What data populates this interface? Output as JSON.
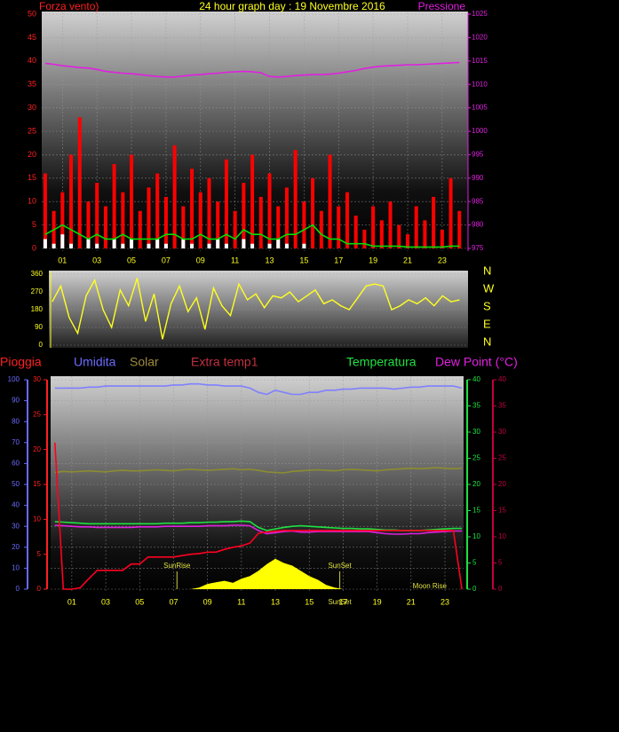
{
  "chart_data": [
    {
      "type": "combo",
      "title": "24 hour graph day : 19 Novembre 2016",
      "ylabel": "Forza vento)",
      "y2label": "Pressione",
      "x": [
        0,
        0.5,
        1,
        1.5,
        2,
        2.5,
        3,
        3.5,
        4,
        4.5,
        5,
        5.5,
        6,
        6.5,
        7,
        7.5,
        8,
        8.5,
        9,
        9.5,
        10,
        10.5,
        11,
        11.5,
        12,
        12.5,
        13,
        13.5,
        14,
        14.5,
        15,
        15.5,
        16,
        16.5,
        17,
        17.5,
        18,
        18.5,
        19,
        19.5,
        20,
        20.5,
        21,
        21.5,
        22,
        22.5,
        23,
        23.5,
        24
      ],
      "xlim": [
        -0.2,
        24.5
      ],
      "xticks": [
        {
          "value": 1,
          "label": "01"
        },
        {
          "value": 3,
          "label": "03"
        },
        {
          "value": 5,
          "label": "05"
        },
        {
          "value": 7,
          "label": "07"
        },
        {
          "value": 9,
          "label": "09"
        },
        {
          "value": 11,
          "label": "11"
        },
        {
          "value": 13,
          "label": "13"
        },
        {
          "value": 15,
          "label": "15"
        },
        {
          "value": 17,
          "label": "17"
        },
        {
          "value": 19,
          "label": "19"
        },
        {
          "value": 21,
          "label": "21"
        },
        {
          "value": 23,
          "label": "23"
        }
      ],
      "ylim": [
        0,
        50
      ],
      "yticks": [
        0,
        5,
        10,
        15,
        20,
        25,
        30,
        35,
        40,
        45,
        50
      ],
      "y2lim": [
        975,
        1025
      ],
      "y2ticks": [
        975,
        980,
        985,
        990,
        995,
        1000,
        1005,
        1010,
        1015,
        1020,
        1025
      ],
      "grid": true,
      "series": [
        {
          "type": "bar",
          "color": "#ff0000",
          "values": [
            16,
            8,
            12,
            20,
            28,
            10,
            14,
            9,
            18,
            12,
            20,
            8,
            13,
            16,
            11,
            22,
            9,
            17,
            12,
            15,
            10,
            19,
            8,
            14,
            20,
            11,
            16,
            9,
            13,
            21,
            10,
            15,
            8,
            20,
            9,
            12,
            7,
            4,
            9,
            6,
            10,
            5,
            3,
            9,
            6,
            11,
            4,
            15,
            8
          ]
        },
        {
          "type": "bar",
          "color": "#ffffff",
          "values": [
            2,
            1,
            3,
            1,
            0,
            2,
            1,
            0,
            2,
            1,
            2,
            0,
            1,
            2,
            1,
            0,
            2,
            1,
            0,
            1,
            2,
            1,
            0,
            2,
            1,
            0,
            1,
            2,
            1,
            0,
            1,
            0,
            0,
            0,
            0,
            0,
            0,
            0,
            0,
            0,
            0,
            0,
            0,
            0,
            0,
            0,
            0,
            0,
            0
          ]
        },
        {
          "type": "line",
          "color": "#00e000",
          "values": [
            3,
            4,
            5,
            4,
            3,
            2,
            3,
            2,
            2,
            3,
            2,
            2,
            2,
            2,
            3,
            3,
            2,
            2,
            3,
            2,
            2,
            3,
            2,
            4,
            3,
            3,
            2,
            2,
            3,
            3,
            4,
            5,
            3,
            2,
            2,
            1,
            1,
            1,
            0.5,
            0.5,
            0.5,
            0.5,
            0.3,
            0.3,
            0.3,
            0.3,
            0.3,
            0.5,
            0.5
          ]
        },
        {
          "type": "line",
          "axis": "y2",
          "color": "#e020e0",
          "values": [
            1014.5,
            1014.3,
            1014,
            1013.8,
            1013.6,
            1013.5,
            1013.2,
            1012.8,
            1012.6,
            1012.4,
            1012.3,
            1012.1,
            1011.9,
            1011.7,
            1011.6,
            1011.6,
            1011.8,
            1012,
            1012.1,
            1012.3,
            1012.4,
            1012.6,
            1012.7,
            1012.8,
            1012.7,
            1012.5,
            1011.7,
            1011.6,
            1011.7,
            1011.9,
            1012,
            1012.1,
            1012.1,
            1012.2,
            1012.4,
            1012.7,
            1013,
            1013.4,
            1013.7,
            1013.9,
            1014,
            1014.1,
            1014.2,
            1014.2,
            1014.3,
            1014.4,
            1014.5,
            1014.6,
            1014.7
          ]
        }
      ]
    },
    {
      "type": "line",
      "x": [
        0,
        0.5,
        1,
        1.5,
        2,
        2.5,
        3,
        3.5,
        4,
        4.5,
        5,
        5.5,
        6,
        6.5,
        7,
        7.5,
        8,
        8.5,
        9,
        9.5,
        10,
        10.5,
        11,
        11.5,
        12,
        12.5,
        13,
        13.5,
        14,
        14.5,
        15,
        15.5,
        16,
        16.5,
        17,
        17.5,
        18,
        18.5,
        19,
        19.5,
        20,
        20.5,
        21,
        21.5,
        22,
        22.5,
        23,
        23.5,
        24
      ],
      "xlim": [
        -0.2,
        24.5
      ],
      "ylim": [
        0,
        360
      ],
      "yticks": [
        0,
        90,
        180,
        270,
        360
      ],
      "compass": [
        "N",
        "W",
        "S",
        "E",
        "N"
      ],
      "grid": true,
      "color": "#ffff20",
      "values": [
        220,
        300,
        140,
        60,
        250,
        330,
        180,
        90,
        280,
        200,
        340,
        120,
        260,
        30,
        210,
        300,
        170,
        240,
        80,
        290,
        200,
        150,
        310,
        230,
        260,
        190,
        250,
        240,
        270,
        220,
        250,
        280,
        210,
        230,
        200,
        180,
        240,
        300,
        310,
        300,
        180,
        200,
        230,
        210,
        240,
        200,
        250,
        220,
        230
      ]
    },
    {
      "type": "combo",
      "legend": [
        {
          "text": "Pioggia",
          "color": "#ff2020"
        },
        {
          "text": "Umidita",
          "color": "#6a6aff"
        },
        {
          "text": "Solar",
          "color": "#a08c3c"
        },
        {
          "text": "Extra temp1",
          "color": "#c03040"
        },
        {
          "text": "Temperatura",
          "color": "#20e040"
        },
        {
          "text": "Dew Point (°C)",
          "color": "#e020e0"
        }
      ],
      "x": [
        0,
        0.5,
        1,
        1.5,
        2,
        2.5,
        3,
        3.5,
        4,
        4.5,
        5,
        5.5,
        6,
        6.5,
        7,
        7.5,
        8,
        8.5,
        9,
        9.5,
        10,
        10.5,
        11,
        11.5,
        12,
        12.5,
        13,
        13.5,
        14,
        14.5,
        15,
        15.5,
        16,
        16.5,
        17,
        17.5,
        18,
        18.5,
        19,
        19.5,
        20,
        20.5,
        21,
        21.5,
        22,
        22.5,
        23,
        23.5,
        24
      ],
      "xlim": [
        -0.25,
        24.1
      ],
      "xticks": [
        {
          "value": 1,
          "label": "01"
        },
        {
          "value": 3,
          "label": "03"
        },
        {
          "value": 5,
          "label": "05"
        },
        {
          "value": 7,
          "label": "07"
        },
        {
          "value": 9,
          "label": "09"
        },
        {
          "value": 11,
          "label": "11"
        },
        {
          "value": 13,
          "label": "13"
        },
        {
          "value": 15,
          "label": "15"
        },
        {
          "value": 17,
          "label": "17"
        },
        {
          "value": 19,
          "label": "19"
        },
        {
          "value": 21,
          "label": "21"
        },
        {
          "value": 23,
          "label": "23"
        }
      ],
      "axes": [
        {
          "side": "left",
          "color": "#6a6aff",
          "lim": [
            0,
            100
          ],
          "ticks": [
            0,
            10,
            20,
            30,
            40,
            50,
            60,
            70,
            80,
            90,
            100
          ]
        },
        {
          "side": "left",
          "color": "#ff2020",
          "lim": [
            0,
            30
          ],
          "ticks": [
            0,
            5,
            10,
            15,
            20,
            25,
            30
          ]
        },
        {
          "side": "right",
          "color": "#20e040",
          "lim": [
            0,
            40
          ],
          "ticks": [
            0,
            5,
            10,
            15,
            20,
            25,
            30,
            35,
            40
          ]
        },
        {
          "side": "right",
          "color": "#c00040",
          "lim": [
            0,
            40
          ],
          "ticks": [
            0,
            5,
            10,
            15,
            20,
            25,
            30,
            35,
            40
          ]
        }
      ],
      "grid": true,
      "series": [
        {
          "type": "area",
          "axis": 2,
          "color": "#ffff00",
          "values": [
            0,
            0,
            0,
            0,
            0,
            0,
            0,
            0,
            0,
            0,
            0,
            0,
            0,
            0,
            0,
            0,
            0,
            0.3,
            1,
            1.3,
            1.6,
            1.2,
            2,
            2.5,
            3.5,
            4.8,
            5.8,
            5,
            4.5,
            3.5,
            2.5,
            1.8,
            0.8,
            0.3,
            0,
            0,
            0,
            0,
            0,
            0,
            0,
            0,
            0,
            0,
            0,
            0,
            0,
            0,
            0
          ]
        },
        {
          "type": "line",
          "axis": 2,
          "color": "#8c8c30",
          "values": [
            22.3,
            22.5,
            22.4,
            22.5,
            22.6,
            22.5,
            22.4,
            22.6,
            22.7,
            22.6,
            22.6,
            22.7,
            22.8,
            22.7,
            22.6,
            22.8,
            22.9,
            22.8,
            22.7,
            22.8,
            22.9,
            23,
            22.8,
            22.9,
            22.7,
            22.4,
            22.3,
            22.2,
            22.5,
            22.6,
            22.7,
            22.8,
            22.7,
            22.6,
            22.8,
            22.9,
            22.8,
            22.7,
            22.6,
            22.8,
            22.9,
            23,
            23.1,
            23,
            23.1,
            23.2,
            23.1,
            23,
            23.1
          ]
        },
        {
          "type": "line",
          "axis": 0,
          "color": "#8080ff",
          "values": [
            96,
            96,
            96,
            96,
            96.5,
            96.5,
            97,
            97,
            97,
            97,
            97,
            97,
            97,
            97,
            97.5,
            97.5,
            98,
            98,
            97.5,
            97.5,
            97,
            97,
            97,
            96,
            94,
            93,
            95,
            94,
            93,
            93,
            94,
            94,
            95,
            95,
            95.5,
            95.5,
            96,
            96,
            96,
            96,
            95.5,
            96,
            96.5,
            96.5,
            97,
            97,
            97,
            97,
            96
          ]
        },
        {
          "type": "line",
          "axis": 3,
          "color": "#e020e0",
          "values": [
            12.2,
            12.1,
            12,
            11.9,
            11.9,
            11.8,
            11.8,
            11.8,
            11.8,
            11.8,
            11.9,
            11.9,
            11.9,
            12,
            12,
            12,
            12,
            12,
            12.1,
            12.1,
            12.1,
            12.2,
            12.2,
            12.1,
            11.2,
            10.6,
            10.8,
            11,
            11.1,
            10.9,
            10.9,
            11,
            11,
            11,
            11,
            11,
            11,
            11,
            10.8,
            10.6,
            10.5,
            10.5,
            10.6,
            10.6,
            10.8,
            10.9,
            11,
            11.1,
            11.1
          ]
        },
        {
          "type": "line",
          "axis": 2,
          "color": "#20e040",
          "values": [
            12.9,
            12.8,
            12.7,
            12.6,
            12.5,
            12.5,
            12.5,
            12.5,
            12.5,
            12.5,
            12.5,
            12.5,
            12.5,
            12.6,
            12.6,
            12.6,
            12.7,
            12.7,
            12.8,
            12.8,
            12.9,
            12.9,
            13,
            12.9,
            11.8,
            11.2,
            11.5,
            11.8,
            12,
            12.1,
            12,
            11.9,
            11.8,
            11.7,
            11.6,
            11.6,
            11.5,
            11.5,
            11.4,
            11.3,
            11.3,
            11.2,
            11.2,
            11.2,
            11.3,
            11.4,
            11.5,
            11.6,
            11.6
          ]
        },
        {
          "type": "line",
          "axis": 1,
          "color": "#ff0020",
          "values": [
            21,
            0,
            0,
            0.2,
            1.5,
            2.7,
            2.7,
            2.7,
            2.7,
            3.6,
            3.6,
            4.6,
            4.6,
            4.6,
            4.6,
            4.8,
            5,
            5.1,
            5.3,
            5.3,
            5.7,
            6,
            6.2,
            6.6,
            8,
            8.2,
            8.3,
            8.4,
            8.4,
            8.4,
            8.4,
            8.4,
            8.4,
            8.4,
            8.4,
            8.4,
            8.4,
            8.4,
            8.4,
            8.4,
            8.4,
            8.4,
            8.4,
            8.4,
            8.4,
            8.4,
            8.4,
            8.4,
            0
          ]
        }
      ],
      "annotations": [
        {
          "text": "SunRise",
          "x": 7.2
        },
        {
          "text": "SunSet",
          "x": 16.8
        },
        {
          "text": "Moon Rise",
          "x": 22.1
        },
        {
          "text": "SunSet",
          "x": 16.8
        }
      ]
    }
  ]
}
